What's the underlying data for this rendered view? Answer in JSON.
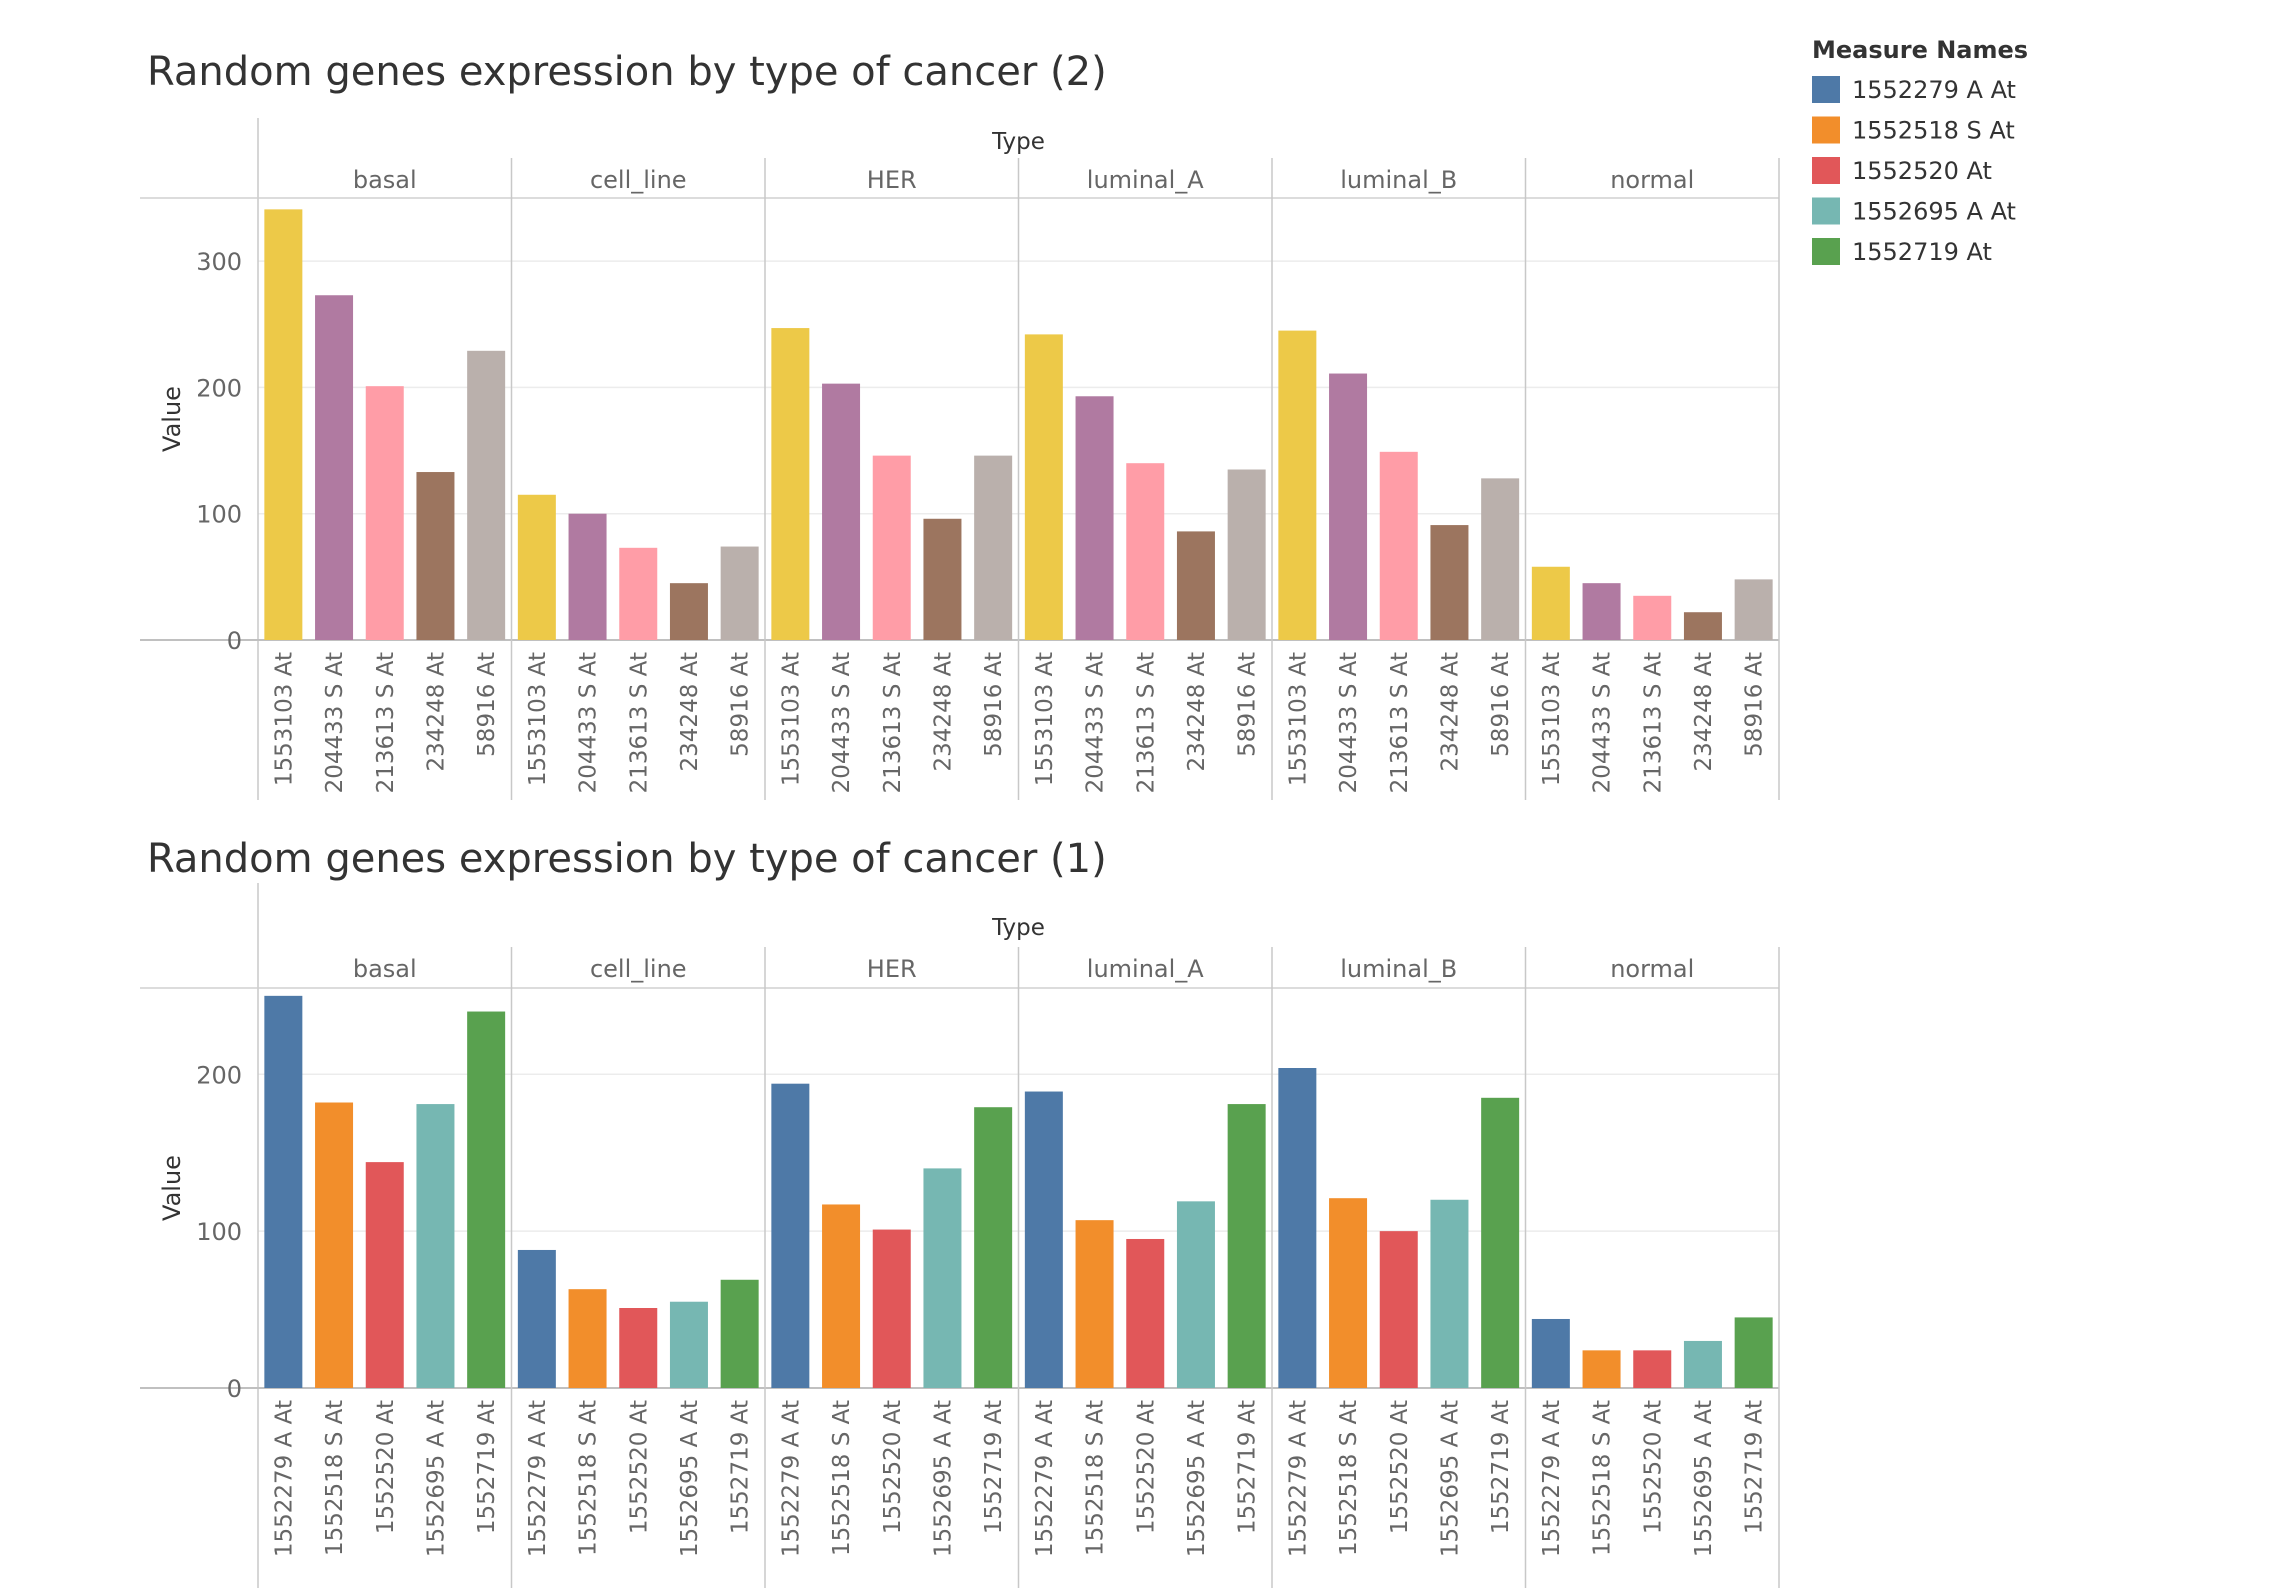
{
  "legend": {
    "title": "Measure Names",
    "items": [
      {
        "label": "1552279 A At",
        "color": "#4e79a7"
      },
      {
        "label": "1552518 S At",
        "color": "#f28e2b"
      },
      {
        "label": "1552520 At",
        "color": "#e15759"
      },
      {
        "label": "1552695 A At",
        "color": "#76b7b2"
      },
      {
        "label": "1552719 At",
        "color": "#59a14f"
      }
    ]
  },
  "chart_data": [
    {
      "type": "bar",
      "title": "Random genes expression by type of cancer (2)",
      "column_header": "Type",
      "ylabel": "Value",
      "ylim": [
        0,
        350
      ],
      "yticks": [
        0,
        100,
        200,
        300
      ],
      "panels": [
        "basal",
        "cell_line",
        "HER",
        "luminal_A",
        "luminal_B",
        "normal"
      ],
      "categories": [
        "1553103 At",
        "204433 S At",
        "213613 S At",
        "234248 At",
        "58916 At"
      ],
      "colors": [
        "#edc948",
        "#b07aa1",
        "#ff9da7",
        "#9c755f",
        "#bab0ac"
      ],
      "values": [
        [
          341,
          273,
          201,
          133,
          229
        ],
        [
          115,
          100,
          73,
          45,
          74
        ],
        [
          247,
          203,
          146,
          96,
          146
        ],
        [
          242,
          193,
          140,
          86,
          135
        ],
        [
          245,
          211,
          149,
          91,
          128
        ],
        [
          58,
          45,
          35,
          22,
          48
        ]
      ]
    },
    {
      "type": "bar",
      "title": "Random genes expression by type of cancer (1)",
      "column_header": "Type",
      "ylabel": "Value",
      "ylim": [
        0,
        255
      ],
      "yticks": [
        0,
        100,
        200
      ],
      "panels": [
        "basal",
        "cell_line",
        "HER",
        "luminal_A",
        "luminal_B",
        "normal"
      ],
      "categories": [
        "1552279 A At",
        "1552518 S At",
        "1552520 At",
        "1552695 A At",
        "1552719 At"
      ],
      "colors": [
        "#4e79a7",
        "#f28e2b",
        "#e15759",
        "#76b7b2",
        "#59a14f"
      ],
      "values": [
        [
          250,
          182,
          144,
          181,
          240
        ],
        [
          88,
          63,
          51,
          55,
          69
        ],
        [
          194,
          117,
          101,
          140,
          179
        ],
        [
          189,
          107,
          95,
          119,
          181
        ],
        [
          204,
          121,
          100,
          120,
          185
        ],
        [
          44,
          24,
          24,
          30,
          45
        ]
      ]
    }
  ]
}
